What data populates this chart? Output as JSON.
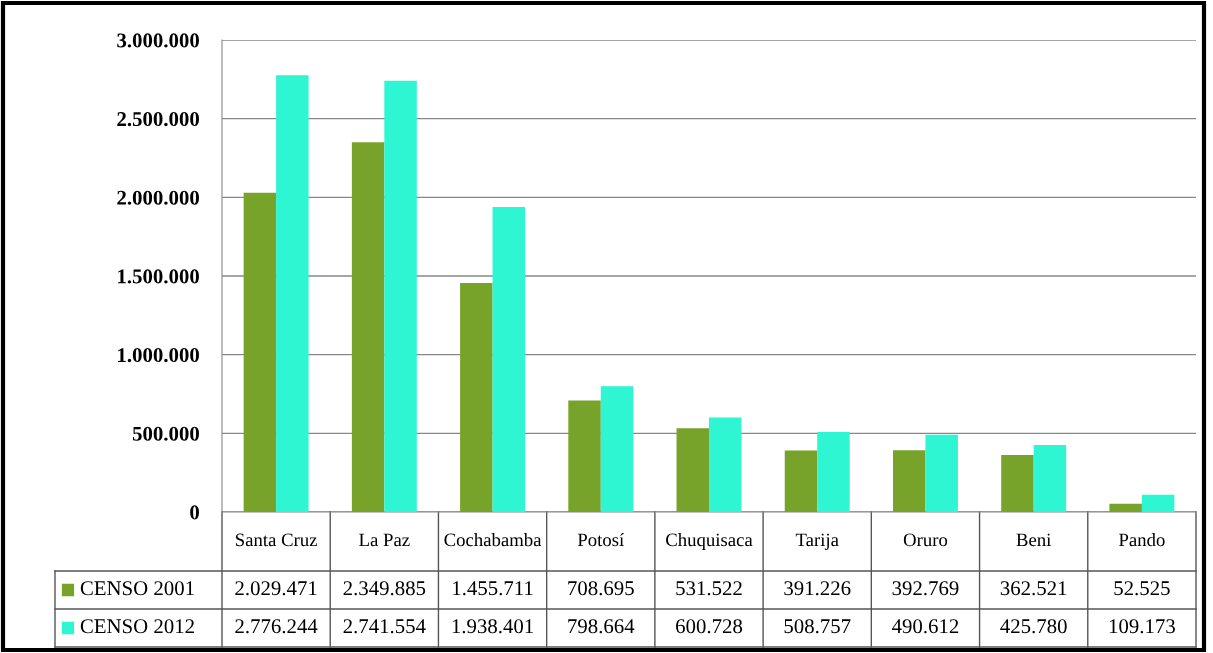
{
  "chart_data": {
    "type": "bar",
    "categories": [
      "Santa Cruz",
      "La Paz",
      "Cochabamba",
      "Potosí",
      "Chuquisaca",
      "Tarija",
      "Oruro",
      "Beni",
      "Pando"
    ],
    "series": [
      {
        "name": "CENSO 2001",
        "color": "#77a32b",
        "values": [
          2029471,
          2349885,
          1455711,
          708695,
          531522,
          391226,
          392769,
          362521,
          52525
        ],
        "value_labels": [
          "2.029.471",
          "2.349.885",
          "1.455.711",
          "708.695",
          "531.522",
          "391.226",
          "392.769",
          "362.521",
          "52.525"
        ]
      },
      {
        "name": "CENSO 2012",
        "color": "#2ef5d2",
        "values": [
          2776244,
          2741554,
          1938401,
          798664,
          600728,
          508757,
          490612,
          425780,
          109173
        ],
        "value_labels": [
          "2.776.244",
          "2.741.554",
          "1.938.401",
          "798.664",
          "600.728",
          "508.757",
          "490.612",
          "425.780",
          "109.173"
        ]
      }
    ],
    "ylim": [
      0,
      3000000
    ],
    "yticks": [
      {
        "value": 0,
        "label": "0"
      },
      {
        "value": 500000,
        "label": "500.000"
      },
      {
        "value": 1000000,
        "label": "1.000.000"
      },
      {
        "value": 1500000,
        "label": "1.500.000"
      },
      {
        "value": 2000000,
        "label": "2.000.000"
      },
      {
        "value": 2500000,
        "label": "2.500.000"
      },
      {
        "value": 3000000,
        "label": "3.000.000"
      }
    ],
    "grid": "y",
    "legend": "bottom left"
  }
}
